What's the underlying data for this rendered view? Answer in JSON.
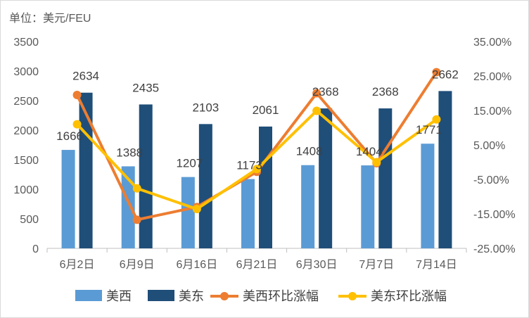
{
  "chart_data": {
    "type": "bar",
    "unit_label": "单位：美元/FEU",
    "categories": [
      "6月2日",
      "6月9日",
      "6月16日",
      "6月21日",
      "6月30日",
      "7月7日",
      "7月14日"
    ],
    "bar_series": [
      {
        "name": "美西",
        "values": [
          1666,
          1388,
          1207,
          1173,
          1408,
          1404,
          1771
        ],
        "color": "#5b9bd5"
      },
      {
        "name": "美东",
        "values": [
          2634,
          2435,
          2103,
          2061,
          2368,
          2368,
          2662
        ],
        "color": "#1f4e79"
      }
    ],
    "line_series": [
      {
        "name": "美西环比涨幅",
        "values": [
          19.5,
          -16.7,
          -13.0,
          -2.8,
          20.0,
          -0.3,
          26.1
        ],
        "color": "#ed7d31"
      },
      {
        "name": "美东环比涨幅",
        "values": [
          11.0,
          -7.6,
          -13.6,
          -2.0,
          14.9,
          0.0,
          12.4
        ],
        "color": "#ffc000"
      }
    ],
    "y_left": {
      "min": 0,
      "max": 3500,
      "ticks": [
        "0",
        "500",
        "1000",
        "1500",
        "2000",
        "2500",
        "3000",
        "3500"
      ]
    },
    "y_right": {
      "min": -25,
      "max": 35,
      "ticks": [
        "-25.00%",
        "-15.00%",
        "-5.00%",
        "5.00%",
        "15.00%",
        "25.00%",
        "35.00%"
      ]
    },
    "grid": false,
    "legend_position": "bottom"
  }
}
